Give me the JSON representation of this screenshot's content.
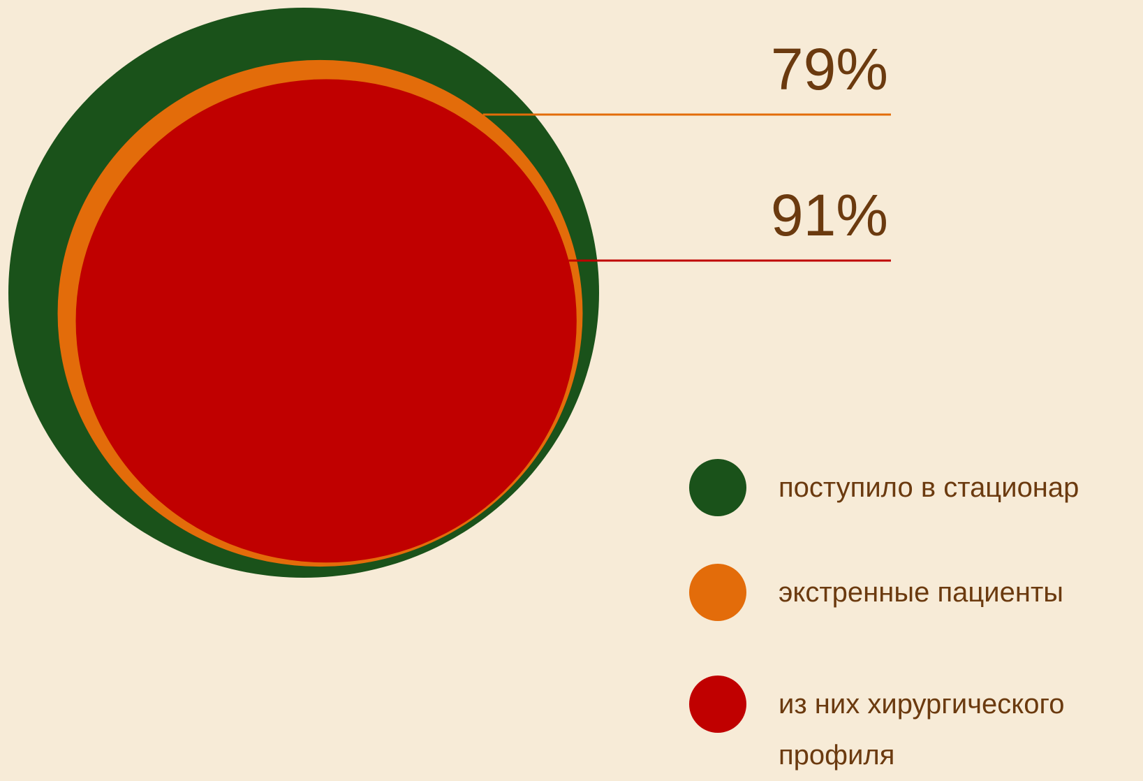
{
  "chart_data": {
    "type": "nested-circles",
    "categories": [
      "поступило в стационар",
      "экстренные пациенты",
      "из них хирургического профиля"
    ],
    "colors": [
      "#1a521a",
      "#e36c0a",
      "#c00000"
    ],
    "values": [
      null,
      79,
      91
    ],
    "value_labels": [
      null,
      "79%",
      "91%"
    ]
  }
}
